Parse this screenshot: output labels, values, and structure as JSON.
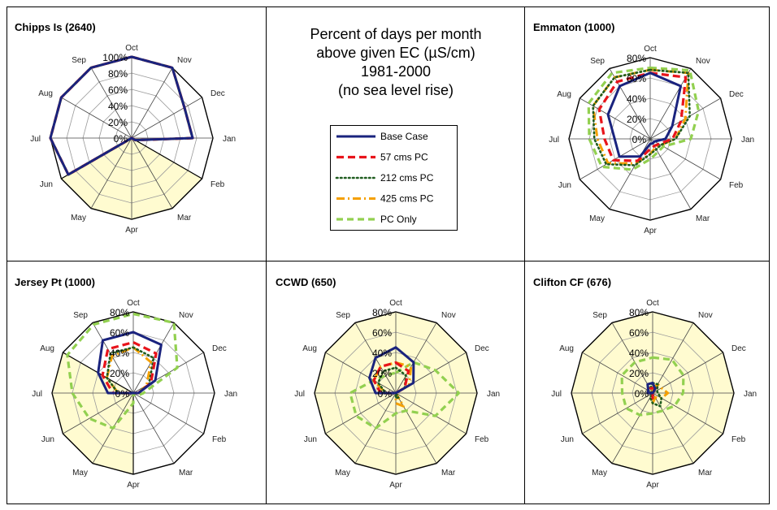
{
  "title_lines": [
    "Percent of days per month",
    "above given EC (µS/cm)",
    "1981-2000",
    "(no sea level rise)"
  ],
  "legend": [
    "Base Case",
    "57 cms PC",
    "212 cms PC",
    "425 cms PC",
    "PC Only"
  ],
  "months": [
    "Oct",
    "Nov",
    "Dec",
    "Jan",
    "Feb",
    "Mar",
    "Apr",
    "May",
    "Jun",
    "Jul",
    "Aug",
    "Sep"
  ],
  "colors": {
    "base_case": "#1a237e",
    "cms57": "#e8141b",
    "cms212": "#1f5c1f",
    "cms425": "#f5a000",
    "pc_only": "#92d050",
    "shade": "#fffbd0"
  },
  "chart_data": [
    {
      "type": "radar",
      "panel_title": "Chipps Is (2640)",
      "rmax": 100,
      "ticks": [
        0,
        20,
        40,
        60,
        80,
        100
      ],
      "tick_labels": [
        "0%",
        "20%",
        "40%",
        "60%",
        "80%",
        "100%"
      ],
      "shaded_months": [
        "Feb",
        "Mar",
        "Apr",
        "May",
        "Jun"
      ],
      "series": [
        {
          "key": "base_case",
          "name": "Base Case",
          "values": [
            100,
            100,
            75,
            75,
            5,
            0,
            0,
            0,
            90,
            100,
            100,
            100
          ]
        },
        {
          "key": "cms57",
          "name": "57 cms PC",
          "values": [
            100,
            100,
            75,
            75,
            5,
            0,
            0,
            0,
            90,
            100,
            100,
            100
          ]
        },
        {
          "key": "cms212",
          "name": "212 cms PC",
          "values": [
            100,
            100,
            75,
            75,
            5,
            0,
            0,
            0,
            90,
            100,
            100,
            100
          ]
        },
        {
          "key": "cms425",
          "name": "425 cms PC",
          "values": [
            100,
            100,
            75,
            75,
            5,
            0,
            0,
            0,
            90,
            100,
            100,
            100
          ]
        },
        {
          "key": "pc_only",
          "name": "PC Only",
          "values": [
            100,
            100,
            75,
            75,
            5,
            0,
            0,
            0,
            90,
            100,
            100,
            100
          ]
        }
      ]
    },
    {
      "type": "radar",
      "panel_title": "Emmaton (1000)",
      "rmax": 80,
      "ticks": [
        0,
        20,
        40,
        60,
        80
      ],
      "tick_labels": [
        "0%",
        "20%",
        "40%",
        "60%",
        "80%"
      ],
      "shaded_months": [],
      "series": [
        {
          "key": "base_case",
          "name": "Base Case",
          "values": [
            65,
            60,
            25,
            15,
            5,
            5,
            5,
            20,
            35,
            35,
            48,
            60
          ]
        },
        {
          "key": "cms57",
          "name": "57 cms PC",
          "values": [
            65,
            70,
            35,
            22,
            10,
            8,
            10,
            25,
            42,
            45,
            58,
            65
          ]
        },
        {
          "key": "cms212",
          "name": "212 cms PC",
          "values": [
            68,
            75,
            45,
            25,
            12,
            12,
            15,
            30,
            50,
            55,
            65,
            70
          ]
        },
        {
          "key": "cms425",
          "name": "425 cms PC",
          "values": [
            68,
            75,
            40,
            25,
            12,
            10,
            15,
            28,
            48,
            52,
            65,
            70
          ]
        },
        {
          "key": "pc_only",
          "name": "PC Only",
          "values": [
            70,
            78,
            55,
            40,
            15,
            15,
            20,
            35,
            55,
            60,
            70,
            75
          ]
        }
      ]
    },
    {
      "type": "radar",
      "panel_title": "Jersey Pt (1000)",
      "rmax": 80,
      "ticks": [
        0,
        20,
        40,
        60,
        80
      ],
      "tick_labels": [
        "0%",
        "20%",
        "40%",
        "60%",
        "80%"
      ],
      "shaded_months": [
        "Apr",
        "May",
        "Jun",
        "Jul",
        "Aug"
      ],
      "series": [
        {
          "key": "base_case",
          "name": "Base Case",
          "values": [
            60,
            55,
            25,
            5,
            0,
            0,
            0,
            0,
            0,
            25,
            40,
            60
          ]
        },
        {
          "key": "cms57",
          "name": "57 cms PC",
          "values": [
            50,
            45,
            20,
            5,
            0,
            0,
            0,
            0,
            0,
            20,
            35,
            50
          ]
        },
        {
          "key": "cms212",
          "name": "212 cms PC",
          "values": [
            45,
            40,
            18,
            5,
            0,
            0,
            0,
            0,
            0,
            15,
            30,
            45
          ]
        },
        {
          "key": "cms425",
          "name": "425 cms PC",
          "values": [
            45,
            35,
            15,
            5,
            0,
            0,
            0,
            0,
            0,
            15,
            30,
            42
          ]
        },
        {
          "key": "pc_only",
          "name": "PC Only",
          "values": [
            78,
            80,
            50,
            10,
            5,
            0,
            10,
            40,
            50,
            60,
            75,
            78
          ]
        }
      ]
    },
    {
      "type": "radar",
      "panel_title": "CCWD (650)",
      "rmax": 80,
      "ticks": [
        0,
        20,
        40,
        60,
        80
      ],
      "tick_labels": [
        "0%",
        "20%",
        "40%",
        "60%",
        "80%"
      ],
      "shaded_months": [
        "Oct",
        "Nov",
        "Dec",
        "Jan",
        "Feb",
        "Mar",
        "Apr",
        "May",
        "Jun",
        "Jul",
        "Aug",
        "Sep"
      ],
      "series": [
        {
          "key": "base_case",
          "name": "Base Case",
          "values": [
            45,
            35,
            20,
            0,
            0,
            0,
            0,
            0,
            0,
            20,
            30,
            40
          ]
        },
        {
          "key": "cms57",
          "name": "57 cms PC",
          "values": [
            30,
            25,
            10,
            0,
            0,
            0,
            0,
            0,
            0,
            15,
            25,
            30
          ]
        },
        {
          "key": "cms212",
          "name": "212 cms PC",
          "values": [
            25,
            20,
            10,
            0,
            0,
            5,
            5,
            0,
            0,
            10,
            20,
            25
          ]
        },
        {
          "key": "cms425",
          "name": "425 cms PC",
          "values": [
            30,
            30,
            15,
            0,
            0,
            15,
            10,
            0,
            0,
            10,
            25,
            30
          ]
        },
        {
          "key": "pc_only",
          "name": "PC Only",
          "values": [
            20,
            35,
            45,
            62,
            45,
            20,
            20,
            40,
            45,
            45,
            25,
            20
          ]
        }
      ]
    },
    {
      "type": "radar",
      "panel_title": "Clifton CF (676)",
      "rmax": 80,
      "ticks": [
        0,
        20,
        40,
        60,
        80
      ],
      "tick_labels": [
        "0%",
        "20%",
        "40%",
        "60%",
        "80%"
      ],
      "shaded_months": [
        "Oct",
        "Nov",
        "Dec",
        "Jan",
        "Feb",
        "Mar",
        "Apr",
        "May",
        "Jun",
        "Jul",
        "Aug",
        "Sep"
      ],
      "series": [
        {
          "key": "base_case",
          "name": "Base Case",
          "values": [
            10,
            5,
            0,
            0,
            0,
            0,
            0,
            0,
            0,
            5,
            5,
            10
          ]
        },
        {
          "key": "cms57",
          "name": "57 cms PC",
          "values": [
            5,
            5,
            0,
            0,
            0,
            0,
            5,
            0,
            0,
            0,
            0,
            5
          ]
        },
        {
          "key": "cms212",
          "name": "212 cms PC",
          "values": [
            10,
            10,
            5,
            5,
            10,
            15,
            10,
            5,
            0,
            0,
            5,
            5
          ]
        },
        {
          "key": "cms425",
          "name": "425 cms PC",
          "values": [
            5,
            10,
            10,
            15,
            10,
            5,
            10,
            0,
            0,
            0,
            0,
            0
          ]
        },
        {
          "key": "pc_only",
          "name": "PC Only",
          "values": [
            35,
            38,
            35,
            30,
            25,
            20,
            20,
            25,
            30,
            30,
            35,
            35
          ]
        }
      ]
    }
  ]
}
